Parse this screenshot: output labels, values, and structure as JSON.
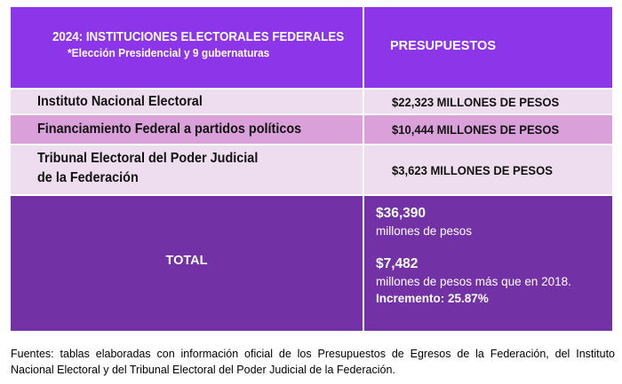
{
  "header": {
    "title": "2024: INSTITUCIONES ELECTORALES FEDERALES",
    "subtitle": "*Elección Presidencial y 9 gubernaturas",
    "column_budget": "PRESUPUESTOS"
  },
  "rows": [
    {
      "institution": "Instituto Nacional Electoral",
      "budget": "$22,323 MILLONES DE PESOS"
    },
    {
      "institution": "Financiamiento Federal a partidos políticos",
      "budget": "$10,444 MILLONES DE PESOS"
    },
    {
      "institution_line1": "Tribunal Electoral del Poder Judicial",
      "institution_line2": "de la Federación",
      "budget": "$3,623 MILLONES DE PESOS"
    }
  ],
  "total": {
    "label": "TOTAL",
    "amount": "$36,390",
    "amount_unit": "millones de pesos",
    "difference": "$7,482",
    "difference_text": "millones de pesos más que en 2018.",
    "increase": "Incremento: 25.87%"
  },
  "source": "Fuentes: tablas elaboradas con información oficial de los Presupuestos de Egresos de la Federación, del Instituto Nacional Electoral y del Tribunal Electoral del Poder Judicial de la Federación.",
  "colors": {
    "header_bg": "#8d35e8",
    "row_light": "#eedcef",
    "row_mid": "#d9a0da",
    "total_bg": "#7231a4"
  }
}
